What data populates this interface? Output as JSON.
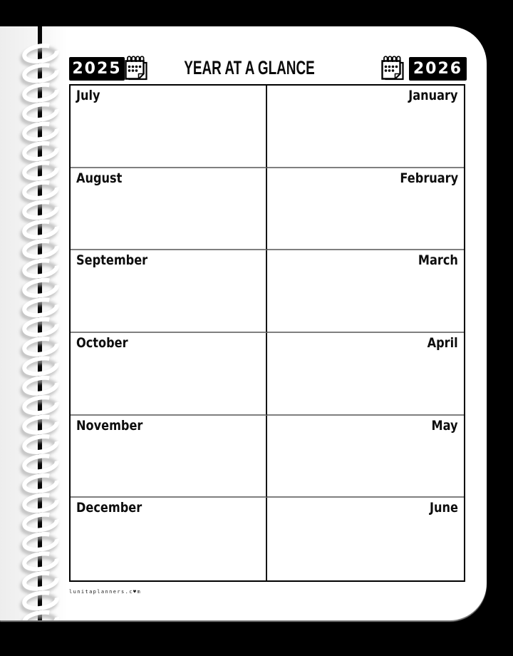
{
  "header": {
    "title": "YEAR AT A GLANCE",
    "year_left": "2025",
    "year_right": "2026",
    "left_icon": "calendar-icon",
    "right_icon": "calendar-icon"
  },
  "grid": {
    "left_months": [
      "July",
      "August",
      "September",
      "October",
      "November",
      "December"
    ],
    "right_months": [
      "January",
      "February",
      "March",
      "April",
      "May",
      "June"
    ]
  },
  "footer": {
    "website": "lunitaplanners.c♥m"
  },
  "binding": {
    "coil_count": 30
  },
  "colors": {
    "background": "#000000",
    "page": "#ffffff",
    "year_badge_bg": "#000000",
    "year_badge_text": "#ffffff",
    "grid_border": "#000000",
    "center_divider": "#141414",
    "row_line": "#7f7f7f",
    "spine_bar": "#070707",
    "coil": "#ffffff"
  }
}
